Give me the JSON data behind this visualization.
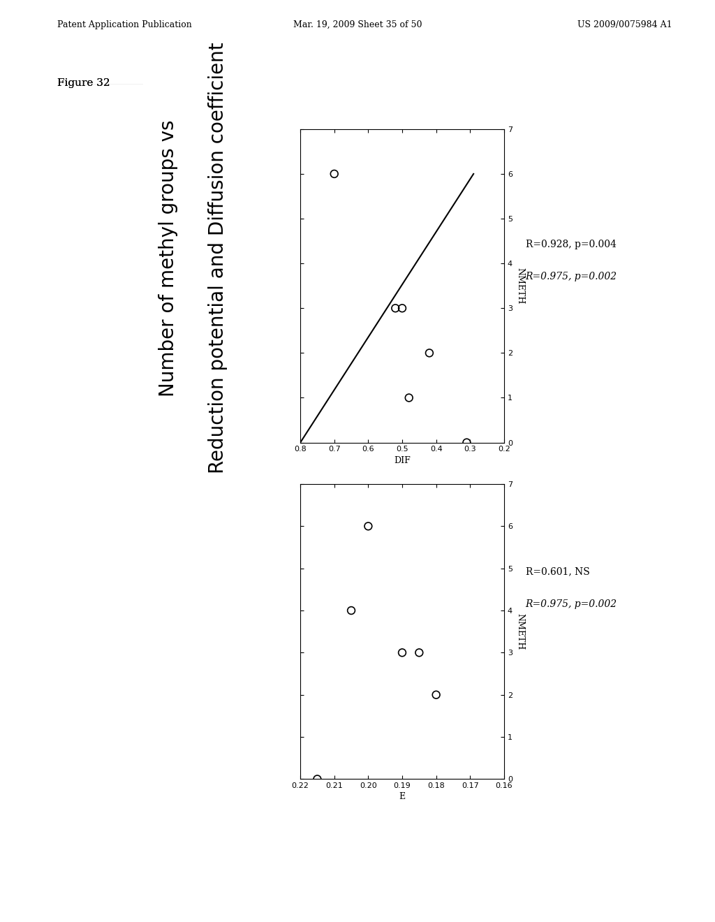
{
  "title_line1": "Number of methyl groups vs",
  "title_line2": "Reduction potential and Diffusion coefficient",
  "figure_label": "Figure 32",
  "header_left": "Patent Application Publication",
  "header_mid": "Mar. 19, 2009 Sheet 35 of 50",
  "header_right": "US 2009/0075984 A1",
  "top_plot": {
    "xlabel": "NMETH",
    "ylabel": "DIF",
    "xlim": [
      0,
      7
    ],
    "ylim": [
      0.2,
      0.8
    ],
    "xticks": [
      0,
      1,
      2,
      3,
      4,
      5,
      6,
      7
    ],
    "yticks": [
      0.2,
      0.3,
      0.4,
      0.5,
      0.6,
      0.7,
      0.8
    ],
    "ytick_labels": [
      "0.2",
      "0.3",
      "0.4",
      "0.5",
      "0.6",
      "0.7",
      "0.8"
    ],
    "scatter_x": [
      0,
      1,
      3,
      3,
      2,
      6
    ],
    "scatter_y": [
      0.31,
      0.48,
      0.5,
      0.52,
      0.42,
      0.7
    ],
    "line_x_start": 0,
    "line_x_end": 6,
    "line_y_start": 0.8,
    "line_y_end": 0.29,
    "annotation1": "R=0.928, p=0.004",
    "annotation2": "R=0.975, p=0.002"
  },
  "bottom_plot": {
    "xlabel": "NMETH",
    "ylabel": "E",
    "xlim": [
      0,
      7
    ],
    "ylim": [
      0.16,
      0.22
    ],
    "xticks": [
      0,
      1,
      2,
      3,
      4,
      5,
      6,
      7
    ],
    "yticks": [
      0.16,
      0.17,
      0.18,
      0.19,
      0.2,
      0.21,
      0.22
    ],
    "ytick_labels": [
      "0.16",
      "0.17",
      "0.18",
      "0.19",
      "0.20",
      "0.21",
      "0.22"
    ],
    "scatter_x": [
      0,
      2,
      3,
      3,
      4,
      6
    ],
    "scatter_y": [
      0.215,
      0.18,
      0.185,
      0.19,
      0.205,
      0.2
    ],
    "annotation1": "R=0.601, NS",
    "annotation2": "R=0.975, p=0.002"
  },
  "bg_color": "#ffffff",
  "line_color": "#000000",
  "scatter_color": "#000000"
}
